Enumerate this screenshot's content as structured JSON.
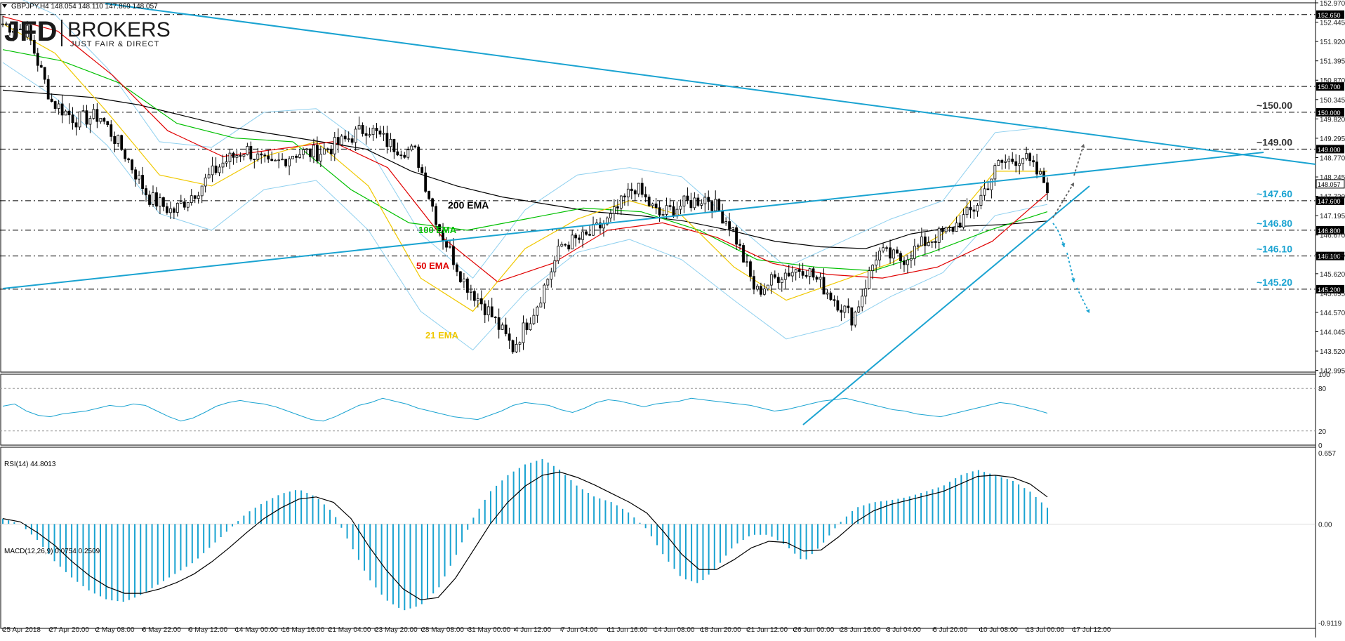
{
  "header": {
    "symbol_info": "GBPJPY,H4  148.054 148.110 147.869 148.057"
  },
  "logo": {
    "brand": "JFD",
    "name": "BROKERS",
    "tagline": "JUST FAIR & DIRECT"
  },
  "colors": {
    "candle": "#000000",
    "ema21": "#f0c800",
    "ema50": "#e00000",
    "ema100": "#00c000",
    "ema200": "#000000",
    "bollinger": "#8fd0ef",
    "trend": "#1aa3d1",
    "arrow_up": "#606060",
    "label_blue": "#1aa3d1",
    "rsi": "#1aa3d1",
    "macd_hist": "#1aa3d1",
    "macd_signal": "#000000"
  },
  "chart_data": [
    {
      "type": "candlestick",
      "title": "GBPJPY,H4",
      "y_range": [
        142.95,
        152.97
      ],
      "y_ticks": [
        "152.970",
        "152.445",
        "151.920",
        "151.395",
        "150.870",
        "150.345",
        "149.820",
        "149.295",
        "148.770",
        "148.245",
        "147.720",
        "147.195",
        "146.670",
        "146.145",
        "145.620",
        "145.095",
        "144.570",
        "144.045",
        "143.520",
        "142.995"
      ],
      "x_ticks": [
        "25 Apr 2018",
        "27 Apr 20:00",
        "2 May 08:00",
        "6 May 22:00",
        "9 May 12:00",
        "14 May 00:00",
        "16 May 16:00",
        "21 May 04:00",
        "23 May 20:00",
        "28 May 08:00",
        "31 May 00:00",
        "4 Jun 12:00",
        "7 Jun 04:00",
        "11 Jun 16:00",
        "14 Jun 08:00",
        "18 Jun 20:00",
        "21 Jun 12:00",
        "26 Jun 00:00",
        "28 Jun 16:00",
        "3 Jul 04:00",
        "5 Jul 20:00",
        "10 Jul 08:00",
        "13 Jul 00:00",
        "17 Jul 12:00"
      ],
      "price_levels": [
        {
          "value": 152.65,
          "label": "152.650"
        },
        {
          "value": 150.7,
          "label": "150.700"
        },
        {
          "value": 150.0,
          "label": "150.000",
          "annotation": "~150.00"
        },
        {
          "value": 149.0,
          "label": "149.000",
          "annotation": "~149.00"
        },
        {
          "value": 147.6,
          "label": "147.600",
          "annotation": "~147.60"
        },
        {
          "value": 146.8,
          "label": "146.800",
          "annotation": "~146.80"
        },
        {
          "value": 146.1,
          "label": "146.100",
          "annotation": "~146.10"
        },
        {
          "value": 145.2,
          "label": "145.200",
          "annotation": "~145.20"
        }
      ],
      "current_price": {
        "value": 148.057,
        "label": "148.057"
      },
      "indicator_labels": {
        "ema200": "200 EMA",
        "ema100": "100 EMA",
        "ema50": "50 EMA",
        "ema21": "21 EMA"
      },
      "series": [
        {
          "name": "Close",
          "values": [
            152.4,
            152.2,
            150.3,
            149.8,
            149.9,
            148.9,
            147.7,
            147.3,
            147.9,
            148.6,
            149.0,
            148.5,
            148.9,
            148.9,
            149.2,
            149.6,
            149.1,
            148.9,
            146.8,
            145.4,
            144.6,
            143.6,
            144.8,
            146.4,
            146.6,
            147.1,
            148.0,
            147.2,
            147.5,
            147.7,
            146.9,
            145.1,
            145.6,
            145.8,
            145.1,
            144.4,
            146.2,
            146.0,
            146.5,
            146.8,
            147.4,
            148.6,
            148.8,
            148.0
          ]
        },
        {
          "name": "200 EMA",
          "values": [
            150.6,
            150.5,
            150.4,
            150.2,
            149.9,
            149.6,
            149.4,
            149.2,
            149.0,
            148.4,
            148.0,
            147.7,
            147.5,
            147.3,
            147.2,
            147.05,
            146.8,
            146.5,
            146.35,
            146.3,
            146.7,
            146.9,
            146.95,
            147.05
          ]
        },
        {
          "name": "100 EMA",
          "values": [
            151.7,
            151.4,
            150.8,
            149.7,
            149.3,
            149.2,
            147.9,
            147.0,
            146.8,
            147.1,
            147.4,
            147.3,
            146.8,
            146.0,
            145.8,
            145.7,
            146.2,
            146.8,
            147.3
          ]
        },
        {
          "name": "50 EMA",
          "values": [
            152.6,
            152.2,
            151.0,
            149.5,
            148.8,
            149.0,
            149.2,
            148.5,
            146.6,
            145.4,
            145.9,
            146.8,
            147.0,
            146.6,
            145.9,
            145.6,
            145.5,
            145.8,
            146.5,
            147.8
          ]
        },
        {
          "name": "21 EMA",
          "values": [
            152.4,
            151.6,
            150.0,
            148.3,
            148.0,
            148.8,
            149.2,
            148.0,
            145.5,
            144.6,
            146.3,
            147.1,
            147.6,
            147.2,
            145.8,
            144.9,
            145.4,
            145.9,
            146.7,
            148.4,
            148.4
          ]
        }
      ],
      "trendlines": [
        "descending resistance",
        "ascending support",
        "short-term uptrend support"
      ]
    },
    {
      "type": "line",
      "title": "RSI(14) 44.8013",
      "y_range": [
        0,
        100
      ],
      "y_ticks": [
        "100",
        "80",
        "20",
        "0"
      ],
      "levels": [
        80,
        20
      ],
      "series": [
        {
          "name": "RSI(14)",
          "values": [
            55,
            58,
            48,
            42,
            40,
            44,
            46,
            48,
            52,
            56,
            54,
            58,
            56,
            48,
            40,
            34,
            38,
            46,
            55,
            60,
            63,
            60,
            58,
            54,
            48,
            42,
            36,
            34,
            40,
            48,
            56,
            60,
            66,
            62,
            58,
            52,
            48,
            44,
            40,
            38,
            36,
            42,
            48,
            56,
            60,
            58,
            56,
            50,
            46,
            52,
            60,
            64,
            62,
            58,
            54,
            58,
            60,
            62,
            66,
            64,
            62,
            60,
            58,
            56,
            52,
            48,
            50,
            54,
            58,
            62,
            64,
            66,
            62,
            58,
            54,
            50,
            48,
            44,
            42,
            40,
            44,
            48,
            52,
            56,
            60,
            58,
            54,
            50,
            45
          ]
        }
      ]
    },
    {
      "type": "bar",
      "title": "MACD(12,26,9) 0.0754 0.2509",
      "y_range": [
        -0.9119,
        0.657
      ],
      "y_ticks": [
        "0.657",
        "0.00",
        "-0.9119"
      ],
      "series": [
        {
          "name": "MACD",
          "values": [
            0.05,
            0.0,
            -0.15,
            -0.35,
            -0.5,
            -0.62,
            -0.7,
            -0.72,
            -0.65,
            -0.55,
            -0.45,
            -0.35,
            -0.2,
            -0.05,
            0.1,
            0.2,
            0.28,
            0.32,
            0.25,
            0.1,
            -0.2,
            -0.5,
            -0.7,
            -0.8,
            -0.75,
            -0.6,
            -0.3,
            0.05,
            0.3,
            0.45,
            0.55,
            0.6,
            0.5,
            0.35,
            0.25,
            0.2,
            0.1,
            -0.05,
            -0.3,
            -0.5,
            -0.55,
            -0.4,
            -0.2,
            -0.1,
            -0.1,
            -0.2,
            -0.35,
            -0.2,
            0.0,
            0.15,
            0.2,
            0.22,
            0.25,
            0.3,
            0.35,
            0.45,
            0.5,
            0.45,
            0.4,
            0.3,
            0.15
          ]
        },
        {
          "name": "Signal",
          "values": [
            0.05,
            0.02,
            -0.08,
            -0.2,
            -0.35,
            -0.48,
            -0.58,
            -0.64,
            -0.64,
            -0.6,
            -0.54,
            -0.46,
            -0.35,
            -0.22,
            -0.08,
            0.05,
            0.15,
            0.23,
            0.25,
            0.2,
            0.05,
            -0.2,
            -0.42,
            -0.6,
            -0.7,
            -0.68,
            -0.5,
            -0.25,
            0.0,
            0.2,
            0.35,
            0.45,
            0.48,
            0.43,
            0.36,
            0.28,
            0.2,
            0.1,
            -0.08,
            -0.28,
            -0.42,
            -0.42,
            -0.33,
            -0.22,
            -0.16,
            -0.17,
            -0.25,
            -0.24,
            -0.12,
            0.02,
            0.12,
            0.18,
            0.22,
            0.26,
            0.3,
            0.37,
            0.44,
            0.45,
            0.43,
            0.37,
            0.25
          ]
        }
      ]
    }
  ]
}
